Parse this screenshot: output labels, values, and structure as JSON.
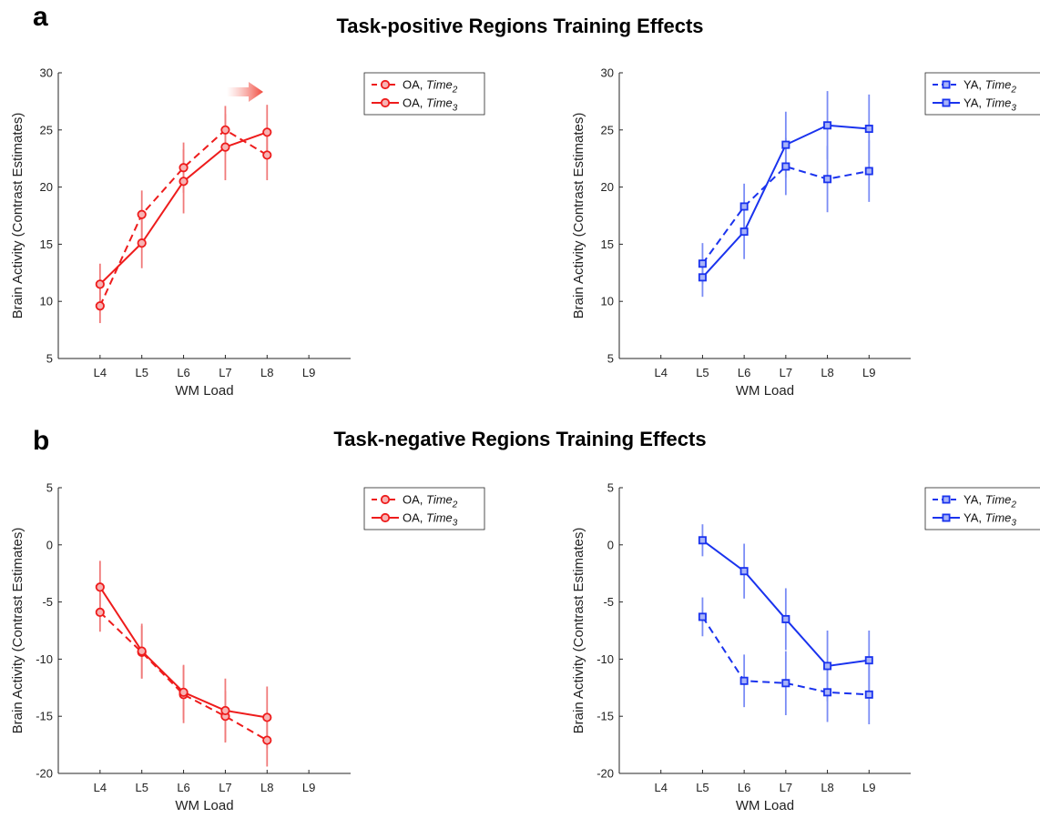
{
  "figure": {
    "rows": [
      {
        "letter": "a",
        "title": "Task-positive Regions Training Effects"
      },
      {
        "letter": "b",
        "title": "Task-negative Regions Training Effects"
      }
    ]
  },
  "colors": {
    "oa": "#ee1c1c",
    "ya": "#1a33ee",
    "oa_error": "#f07a7a",
    "ya_error": "#7a8cf5",
    "arrow": "#f0483c"
  },
  "chart_data": [
    {
      "type": "line",
      "panel": "a-left",
      "xlabel": "WM Load",
      "ylabel": "Brain Activity (Contrast Estimates)",
      "categories": [
        "L4",
        "L5",
        "L6",
        "L7",
        "L8",
        "L9"
      ],
      "ylim": [
        5,
        30
      ],
      "yticks": [
        5,
        10,
        15,
        20,
        25,
        30
      ],
      "marker": "circle",
      "legend_position": "outside-right-top",
      "annotation": "arrow-right",
      "series": [
        {
          "name": "OA, Time2",
          "label": "OA, ",
          "italic": "Time",
          "sub": "2",
          "style": "dashed",
          "values": [
            9.6,
            17.6,
            21.7,
            25.0,
            22.8,
            null
          ],
          "err": [
            1.5,
            2.1,
            2.2,
            2.1,
            2.2,
            null
          ]
        },
        {
          "name": "OA, Time3",
          "label": "OA, ",
          "italic": "Time",
          "sub": "3",
          "style": "solid",
          "values": [
            11.5,
            15.1,
            20.5,
            23.5,
            24.8,
            null
          ],
          "err": [
            1.8,
            2.2,
            2.8,
            2.9,
            2.4,
            null
          ]
        }
      ]
    },
    {
      "type": "line",
      "panel": "a-right",
      "xlabel": "WM Load",
      "ylabel": "Brain Activity (Contrast Estimates)",
      "categories": [
        "L4",
        "L5",
        "L6",
        "L7",
        "L8",
        "L9"
      ],
      "ylim": [
        5,
        30
      ],
      "yticks": [
        5,
        10,
        15,
        20,
        25,
        30
      ],
      "marker": "square",
      "legend_position": "outside-right-top",
      "series": [
        {
          "name": "YA, Time2",
          "label": "YA, ",
          "italic": "Time",
          "sub": "2",
          "style": "dashed",
          "values": [
            null,
            13.3,
            18.3,
            21.8,
            20.7,
            21.4
          ],
          "err": [
            null,
            1.8,
            2.0,
            2.5,
            2.9,
            2.7
          ]
        },
        {
          "name": "YA, Time3",
          "label": "YA, ",
          "italic": "Time",
          "sub": "3",
          "style": "solid",
          "values": [
            null,
            12.1,
            16.1,
            23.7,
            25.4,
            25.1
          ],
          "err": [
            null,
            1.7,
            2.4,
            2.9,
            3.0,
            3.0
          ]
        }
      ]
    },
    {
      "type": "line",
      "panel": "b-left",
      "xlabel": "WM Load",
      "ylabel": "Brain Activity (Contrast Estimates)",
      "categories": [
        "L4",
        "L5",
        "L6",
        "L7",
        "L8",
        "L9"
      ],
      "ylim": [
        -20,
        5
      ],
      "yticks": [
        -20,
        -15,
        -10,
        -5,
        0,
        5
      ],
      "marker": "circle",
      "legend_position": "outside-right-top",
      "series": [
        {
          "name": "OA, Time2",
          "label": "OA, ",
          "italic": "Time",
          "sub": "2",
          "style": "dashed",
          "values": [
            -5.9,
            -9.4,
            -13.1,
            -15.0,
            -17.1,
            null
          ],
          "err": [
            1.7,
            2.3,
            2.5,
            2.2,
            2.3,
            null
          ]
        },
        {
          "name": "OA, Time3",
          "label": "OA, ",
          "italic": "Time",
          "sub": "3",
          "style": "solid",
          "values": [
            -3.7,
            -9.3,
            -12.9,
            -14.5,
            -15.1,
            null
          ],
          "err": [
            2.3,
            2.4,
            2.4,
            2.8,
            2.7,
            null
          ]
        }
      ]
    },
    {
      "type": "line",
      "panel": "b-right",
      "xlabel": "WM Load",
      "ylabel": "Brain Activity (Contrast Estimates)",
      "categories": [
        "L4",
        "L5",
        "L6",
        "L7",
        "L8",
        "L9"
      ],
      "ylim": [
        -20,
        5
      ],
      "yticks": [
        -20,
        -15,
        -10,
        -5,
        0,
        5
      ],
      "marker": "square",
      "legend_position": "outside-right-top",
      "series": [
        {
          "name": "YA, Time2",
          "label": "YA, ",
          "italic": "Time",
          "sub": "2",
          "style": "dashed",
          "values": [
            null,
            -6.3,
            -11.9,
            -12.1,
            -12.9,
            -13.1
          ],
          "err": [
            null,
            1.7,
            2.3,
            2.8,
            2.6,
            2.6
          ]
        },
        {
          "name": "YA, Time3",
          "label": "YA, ",
          "italic": "Time",
          "sub": "3",
          "style": "solid",
          "values": [
            null,
            0.4,
            -2.3,
            -6.5,
            -10.6,
            -10.1
          ],
          "err": [
            null,
            1.4,
            2.4,
            2.7,
            3.1,
            2.6
          ]
        }
      ]
    }
  ]
}
